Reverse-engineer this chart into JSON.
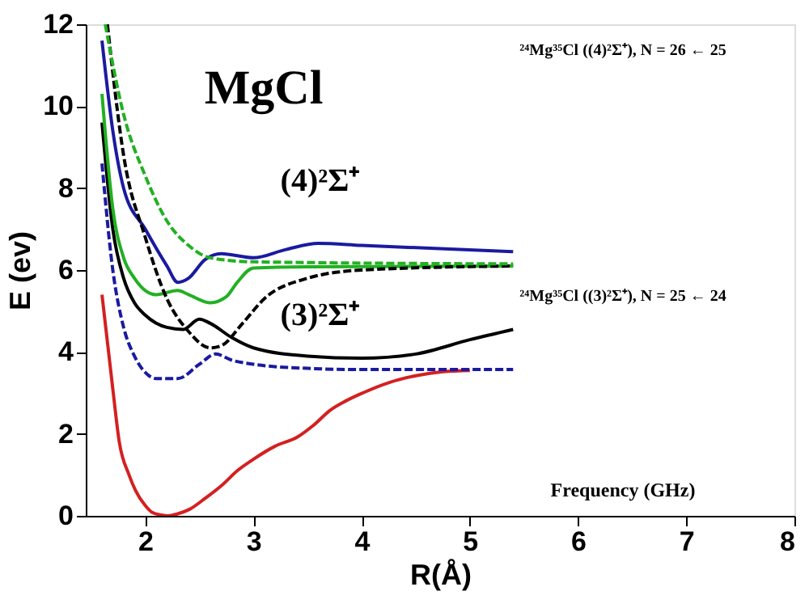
{
  "chart_data": {
    "type": "line",
    "xlabel": "R(Å)",
    "ylabel": "E (ev)",
    "xlim": [
      1.45,
      8
    ],
    "xticks": [
      2,
      3,
      4,
      5,
      6,
      7,
      8
    ],
    "ylim": [
      0,
      12
    ],
    "yticks": [
      0,
      2,
      4,
      6,
      8,
      10,
      12
    ],
    "grid": false,
    "legend": false,
    "marker": "none",
    "series": [
      {
        "color": "#d42020",
        "line_style": "solid",
        "x": [
          1.6,
          1.7,
          1.76,
          1.85,
          1.91,
          2.0,
          2.06,
          2.15,
          2.21,
          2.3,
          2.41,
          2.55,
          2.71,
          2.85,
          3.01,
          3.2,
          3.41,
          3.55,
          3.71,
          3.85,
          4.01,
          4.25,
          4.5,
          4.75,
          5.0
        ],
        "values": [
          5.4,
          3.1,
          1.8,
          1.0,
          0.62,
          0.25,
          0.09,
          0.02,
          0,
          0.05,
          0.16,
          0.42,
          0.75,
          1.1,
          1.4,
          1.7,
          1.93,
          2.2,
          2.58,
          2.8,
          3.0,
          3.25,
          3.42,
          3.52,
          3.55
        ]
      },
      {
        "color": "#1a1aa0",
        "line_style": "dashed",
        "x": [
          1.6,
          1.7,
          1.8,
          1.9,
          2.0,
          2.1,
          2.3,
          2.5,
          2.65,
          2.8,
          3.0,
          3.5,
          4.0,
          5.4
        ],
        "values": [
          8.6,
          6.0,
          4.6,
          3.9,
          3.5,
          3.35,
          3.35,
          3.7,
          3.95,
          3.8,
          3.7,
          3.6,
          3.57,
          3.57
        ]
      },
      {
        "color": "#000000",
        "line_style": "solid",
        "x": [
          1.6,
          1.7,
          1.8,
          1.9,
          2.0,
          2.2,
          2.35,
          2.5,
          2.6,
          2.8,
          3.0,
          3.5,
          4.0,
          4.5,
          5.0,
          5.4
        ],
        "values": [
          9.6,
          7.0,
          5.8,
          5.2,
          4.9,
          4.6,
          4.55,
          4.8,
          4.7,
          4.35,
          4.1,
          3.9,
          3.85,
          3.95,
          4.3,
          4.55
        ]
      },
      {
        "color": "#000000",
        "line_style": "dashed",
        "x": [
          1.65,
          1.8,
          2.0,
          2.2,
          2.4,
          2.6,
          2.7,
          2.9,
          3.1,
          3.5,
          4.0,
          5.4
        ],
        "values": [
          12,
          8.8,
          6.8,
          5.3,
          4.5,
          4.1,
          4.15,
          4.7,
          5.3,
          5.8,
          6.0,
          6.1
        ]
      },
      {
        "color": "#22b022",
        "line_style": "solid",
        "x": [
          1.6,
          1.7,
          1.8,
          1.9,
          2.0,
          2.1,
          2.3,
          2.4,
          2.6,
          2.75,
          2.85,
          3.0,
          3.5,
          5.4
        ],
        "values": [
          10.3,
          7.5,
          6.3,
          5.8,
          5.5,
          5.4,
          5.5,
          5.4,
          5.2,
          5.35,
          5.7,
          6.05,
          6.08,
          6.1
        ]
      },
      {
        "color": "#22b022",
        "line_style": "dashed",
        "x": [
          1.63,
          1.8,
          2.0,
          2.2,
          2.4,
          2.6,
          3.0,
          5.4
        ],
        "values": [
          12,
          9.8,
          8.3,
          7.2,
          6.6,
          6.3,
          6.2,
          6.15
        ]
      },
      {
        "color": "#1a1aa0",
        "line_style": "solid",
        "x": [
          1.6,
          1.7,
          1.8,
          2.0,
          2.2,
          2.3,
          2.4,
          2.55,
          2.7,
          3.0,
          3.3,
          3.6,
          4.0,
          5.4
        ],
        "values": [
          11.6,
          9.4,
          8.0,
          7.0,
          6.1,
          5.7,
          5.8,
          6.25,
          6.4,
          6.3,
          6.5,
          6.65,
          6.6,
          6.45
        ]
      }
    ],
    "annotations": [
      "MgCl",
      "(4)²Σ⁺",
      "(3)²Σ⁺",
      "²⁴Mg³⁵Cl ((4)²Σ⁺), N = 26 ← 25",
      "²⁴Mg³⁵Cl ((3)²Σ⁺), N = 25 ← 24",
      "Frequency (GHz)"
    ]
  }
}
